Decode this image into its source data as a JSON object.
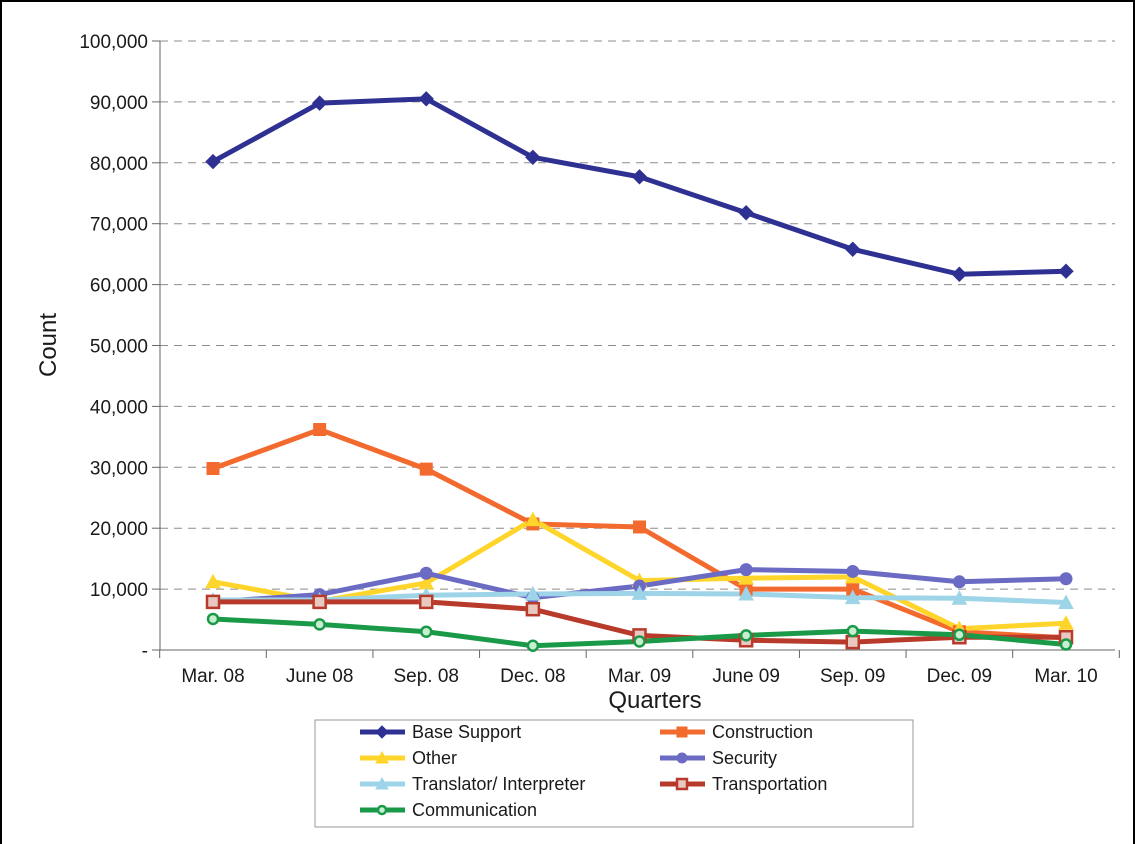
{
  "chart_data": {
    "type": "line",
    "title": "",
    "xlabel": "Quarters",
    "ylabel": "Count",
    "ylim": [
      0,
      100000
    ],
    "yticks": [
      0,
      10000,
      20000,
      30000,
      40000,
      50000,
      60000,
      70000,
      80000,
      90000,
      100000
    ],
    "ytick_labels": [
      "-",
      "10,000",
      "20,000",
      "30,000",
      "40,000",
      "50,000",
      "60,000",
      "70,000",
      "80,000",
      "90,000",
      "100,000"
    ],
    "grid": "horizontal dashed",
    "legend_position": "bottom",
    "categories": [
      "Mar. 08",
      "June 08",
      "Sep. 08",
      "Dec. 08",
      "Mar. 09",
      "June 09",
      "Sep. 09",
      "Dec. 09",
      "Mar. 10"
    ],
    "series": [
      {
        "name": "Base Support",
        "color": "#2e3192",
        "marker": "diamond",
        "values": [
          80200,
          89800,
          90500,
          80900,
          77700,
          71800,
          65800,
          61700,
          62200
        ]
      },
      {
        "name": "Construction",
        "color": "#f26a2e",
        "marker": "square",
        "values": [
          29800,
          36200,
          29700,
          20700,
          20200,
          10000,
          10000,
          3000,
          2000
        ]
      },
      {
        "name": "Other",
        "color": "#ffd52b",
        "marker": "triangle",
        "values": [
          11200,
          8000,
          11000,
          21400,
          11400,
          11800,
          12000,
          3500,
          4400
        ]
      },
      {
        "name": "Security",
        "color": "#6b6bc4",
        "marker": "circle",
        "values": [
          7900,
          9100,
          12600,
          8600,
          10500,
          13200,
          12900,
          11200,
          11700
        ]
      },
      {
        "name": "Translator/ Interpreter",
        "color": "#9ed4e8",
        "marker": "triangle",
        "values": [
          8200,
          8200,
          9000,
          9200,
          9300,
          9200,
          8600,
          8500,
          7800
        ]
      },
      {
        "name": "Transportation",
        "color": "#b83a2a",
        "marker": "hollow-square",
        "values": [
          7900,
          7900,
          7900,
          6700,
          2400,
          1600,
          1300,
          2100,
          2100
        ]
      },
      {
        "name": "Communication",
        "color": "#1a9a48",
        "marker": "hollow-circle",
        "values": [
          5100,
          4200,
          3000,
          700,
          1400,
          2400,
          3100,
          2500,
          900
        ]
      }
    ]
  }
}
